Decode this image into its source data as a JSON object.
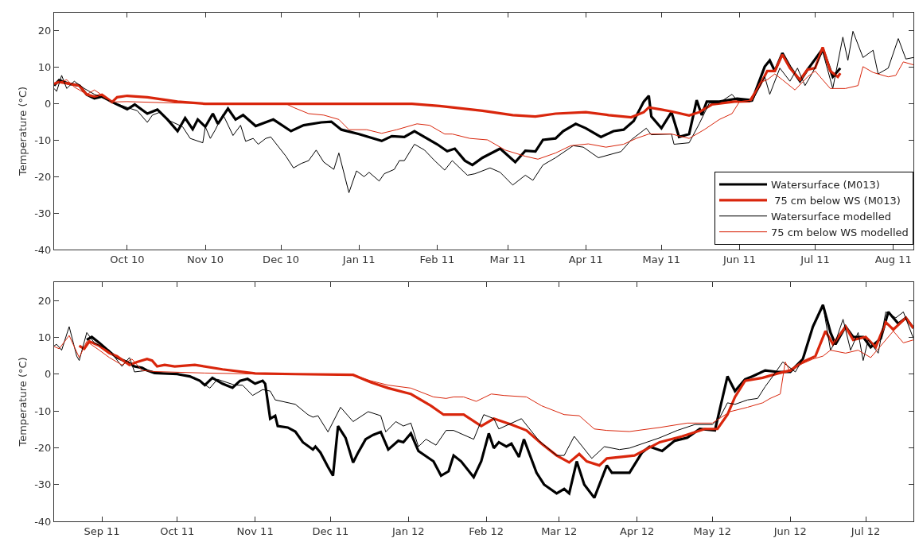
{
  "chart_data": [
    {
      "type": "line",
      "ylabel": "Temperature (°C)",
      "xlim": [
        "2010-09-02",
        "2011-08-09"
      ],
      "xticks": [
        {
          "value": "2010-10-01",
          "label": "Oct 10"
        },
        {
          "value": "2010-11-01",
          "label": "Nov 10"
        },
        {
          "value": "2010-12-01",
          "label": "Dec 10"
        },
        {
          "value": "2011-01-01",
          "label": "Jan 11"
        },
        {
          "value": "2011-02-01",
          "label": "Feb 11"
        },
        {
          "value": "2011-03-01",
          "label": "Mar 11"
        },
        {
          "value": "2011-04-01",
          "label": "Apr 11"
        },
        {
          "value": "2011-05-01",
          "label": "May 11"
        },
        {
          "value": "2011-06-01",
          "label": "Jun 11"
        },
        {
          "value": "2011-07-01",
          "label": "Jul 11"
        },
        {
          "value": "2011-08-01",
          "label": "Aug 11"
        }
      ],
      "ylim": [
        -40,
        25
      ],
      "yticks": [
        -40,
        -30,
        -20,
        -10,
        0,
        10,
        20
      ],
      "legend": "bottom right",
      "series": [
        {
          "name": "Watersurface (M013)",
          "color": "#000000",
          "x": [
            "2010-09-02",
            "2010-09-04",
            "2010-09-08",
            "2010-09-12",
            "2010-09-15",
            "2010-09-18",
            "2010-09-21",
            "2010-09-25",
            "2010-10-01",
            "2010-10-04",
            "2010-10-09",
            "2010-10-13",
            "2010-10-17",
            "2010-10-21",
            "2010-10-24",
            "2010-10-27",
            "2010-10-29",
            "2010-11-01",
            "2010-11-04",
            "2010-11-06",
            "2010-11-10",
            "2010-11-13",
            "2010-11-16",
            "2010-11-21",
            "2010-11-28",
            "2010-12-05",
            "2010-12-10",
            "2010-12-17",
            "2010-12-21",
            "2010-12-25",
            "2011-01-01",
            "2011-01-10",
            "2011-01-14",
            "2011-01-19",
            "2011-01-23",
            "2011-02-01",
            "2011-02-05",
            "2011-02-08",
            "2011-02-12",
            "2011-02-15",
            "2011-02-19",
            "2011-02-26",
            "2011-03-04",
            "2011-03-08",
            "2011-03-12",
            "2011-03-15",
            "2011-03-20",
            "2011-03-23",
            "2011-03-28",
            "2011-04-01",
            "2011-04-07",
            "2011-04-12",
            "2011-04-16",
            "2011-04-20",
            "2011-04-24",
            "2011-04-26",
            "2011-04-27",
            "2011-05-01",
            "2011-05-05",
            "2011-05-08",
            "2011-05-12",
            "2011-05-15",
            "2011-05-17",
            "2011-05-19",
            "2011-05-24",
            "2011-05-31",
            "2011-06-06",
            "2011-06-11",
            "2011-06-13",
            "2011-06-15",
            "2011-06-18",
            "2011-06-21",
            "2011-06-25",
            "2011-06-28",
            "2011-07-04",
            "2011-07-08",
            "2011-07-11"
          ],
          "values": [
            5,
            6.5,
            5.5,
            5,
            2.5,
            1.5,
            2,
            0.5,
            -1.5,
            -0.2,
            -2.7,
            -1.6,
            -4.3,
            -7.5,
            -3.9,
            -7,
            -4.3,
            -6.3,
            -2.7,
            -5.5,
            -1.3,
            -4.3,
            -3.1,
            -6.1,
            -4.3,
            -7.5,
            -5.9,
            -5.1,
            -4.9,
            -7.1,
            -8.3,
            -10.2,
            -8.9,
            -9.1,
            -7.5,
            -11.1,
            -13,
            -12.3,
            -15.6,
            -16.8,
            -14.8,
            -12.3,
            -16,
            -12.9,
            -13.1,
            -9.9,
            -9.5,
            -7.5,
            -5.5,
            -6.7,
            -9.1,
            -7.5,
            -7.1,
            -4.7,
            0.6,
            2.2,
            -3.5,
            -6.7,
            -2.3,
            -9.1,
            -8.3,
            1,
            -3.1,
            0.6,
            0.6,
            1.4,
            1,
            10.2,
            11.9,
            9,
            13.9,
            10.2,
            6.2,
            9.4,
            15.1,
            7.4,
            9.8
          ]
        },
        {
          "name": " 75 cm below WS (M013)",
          "color": "#d9260c",
          "x": [
            "2010-09-02",
            "2010-09-04",
            "2010-09-08",
            "2010-09-12",
            "2010-09-15",
            "2010-09-18",
            "2010-09-21",
            "2010-09-25",
            "2010-09-27",
            "2010-10-01",
            "2010-10-09",
            "2010-10-21",
            "2010-11-01",
            "2011-01-22",
            "2011-02-02",
            "2011-02-07",
            "2011-02-19",
            "2011-03-03",
            "2011-03-12",
            "2011-03-20",
            "2011-04-01",
            "2011-04-10",
            "2011-04-19",
            "2011-04-24",
            "2011-04-26",
            "2011-05-01",
            "2011-05-05",
            "2011-05-12",
            "2011-05-16",
            "2011-05-21",
            "2011-05-30",
            "2011-06-05",
            "2011-06-09",
            "2011-06-12",
            "2011-06-15",
            "2011-06-18",
            "2011-06-21",
            "2011-06-25",
            "2011-06-28",
            "2011-07-01",
            "2011-07-04",
            "2011-07-07",
            "2011-07-10",
            "2011-07-11"
          ],
          "values": [
            5.5,
            6,
            5.5,
            5,
            2.5,
            2,
            2.5,
            0.5,
            1.8,
            2.2,
            1.8,
            0.6,
            0,
            0,
            -0.6,
            -1,
            -1.9,
            -3.1,
            -3.5,
            -2.7,
            -2.3,
            -3.1,
            -3.7,
            -2.3,
            -1,
            -1.6,
            -2.1,
            -3.2,
            -2.3,
            -0.2,
            0.6,
            0.7,
            5,
            9,
            9,
            13.5,
            9.8,
            6.6,
            9.4,
            9.8,
            15.5,
            9,
            7.4,
            8.4
          ]
        },
        {
          "name": "Watersurface modelled",
          "color": "#000000",
          "x": [
            "2010-09-02",
            "2010-09-03",
            "2010-09-05",
            "2010-09-07",
            "2010-09-10",
            "2010-09-14",
            "2010-09-18",
            "2010-09-25",
            "2010-10-01",
            "2010-10-05",
            "2010-10-09",
            "2010-10-11",
            "2010-10-14",
            "2010-10-18",
            "2010-10-23",
            "2010-10-26",
            "2010-10-31",
            "2010-11-01",
            "2010-11-03",
            "2010-11-05",
            "2010-11-08",
            "2010-11-12",
            "2010-11-15",
            "2010-11-17",
            "2010-11-20",
            "2010-11-22",
            "2010-11-25",
            "2010-11-27",
            "2010-12-03",
            "2010-12-06",
            "2010-12-09",
            "2010-12-12",
            "2010-12-15",
            "2010-12-18",
            "2010-12-22",
            "2010-12-24",
            "2010-12-28",
            "2010-12-31",
            "2011-01-03",
            "2011-01-05",
            "2011-01-09",
            "2011-01-11",
            "2011-01-15",
            "2011-01-17",
            "2011-01-19",
            "2011-01-23",
            "2011-01-27",
            "2011-01-31",
            "2011-02-04",
            "2011-02-07",
            "2011-02-13",
            "2011-02-16",
            "2011-02-22",
            "2011-02-26",
            "2011-03-03",
            "2011-03-08",
            "2011-03-11",
            "2011-03-15",
            "2011-03-20",
            "2011-03-27",
            "2011-03-31",
            "2011-04-06",
            "2011-04-15",
            "2011-04-19",
            "2011-04-25",
            "2011-04-27",
            "2011-05-05",
            "2011-05-06",
            "2011-05-12",
            "2011-05-16",
            "2011-05-20",
            "2011-05-24",
            "2011-05-29",
            "2011-05-31",
            "2011-06-06",
            "2011-06-11",
            "2011-06-13",
            "2011-06-17",
            "2011-06-21",
            "2011-06-24",
            "2011-06-27",
            "2011-06-30",
            "2011-07-04",
            "2011-07-08",
            "2011-07-12",
            "2011-07-14",
            "2011-07-16",
            "2011-07-20",
            "2011-07-24",
            "2011-07-26",
            "2011-07-30",
            "2011-08-03",
            "2011-08-06",
            "2011-08-09"
          ],
          "values": [
            4.2,
            3.4,
            7.8,
            4.2,
            6.2,
            4.2,
            2.6,
            0.5,
            -1,
            -1.9,
            -5.1,
            -3.1,
            -2.3,
            -4.7,
            -6.3,
            -9.5,
            -10.7,
            -6.3,
            -9.5,
            -7.1,
            -2.9,
            -8.7,
            -5.9,
            -10.3,
            -9.5,
            -11.1,
            -9.5,
            -9.1,
            -14.4,
            -17.6,
            -16.4,
            -15.6,
            -12.7,
            -16,
            -18,
            -13.5,
            -24.4,
            -18.4,
            -20,
            -18.8,
            -21.2,
            -19.2,
            -18,
            -15.6,
            -15.6,
            -11.1,
            -12.7,
            -15.6,
            -18.2,
            -15.6,
            -19.6,
            -19.2,
            -17.6,
            -18.8,
            -22.3,
            -19.6,
            -21,
            -16.8,
            -14.8,
            -11.5,
            -11.9,
            -14.8,
            -13.1,
            -9.9,
            -6.7,
            -8.5,
            -8.3,
            -11.1,
            -10.7,
            -5.5,
            0.2,
            0.3,
            2.6,
            1,
            0.6,
            7.4,
            2.6,
            9.8,
            6.2,
            9.8,
            5,
            8.6,
            14.3,
            4.2,
            18.3,
            11.9,
            19.9,
            12.7,
            14.7,
            8.2,
            9.8,
            17.9,
            12.3,
            12.7
          ]
        },
        {
          "name": "75 cm below WS modelled",
          "color": "#d9260c",
          "x": [
            "2010-09-02",
            "2010-09-07",
            "2010-09-10",
            "2010-09-15",
            "2010-09-18",
            "2010-09-25",
            "2010-10-01",
            "2010-10-21",
            "2010-11-13",
            "2010-12-03",
            "2010-12-06",
            "2010-12-12",
            "2010-12-18",
            "2010-12-24",
            "2010-12-28",
            "2011-01-04",
            "2011-01-10",
            "2011-01-16",
            "2011-01-24",
            "2011-01-29",
            "2011-02-04",
            "2011-02-07",
            "2011-02-14",
            "2011-02-21",
            "2011-02-28",
            "2011-03-08",
            "2011-03-13",
            "2011-03-20",
            "2011-03-26",
            "2011-04-02",
            "2011-04-09",
            "2011-04-16",
            "2011-04-21",
            "2011-04-26",
            "2011-05-05",
            "2011-05-12",
            "2011-05-18",
            "2011-05-24",
            "2011-05-29",
            "2011-06-01",
            "2011-06-06",
            "2011-06-09",
            "2011-06-12",
            "2011-06-15",
            "2011-06-18",
            "2011-06-23",
            "2011-06-28",
            "2011-07-01",
            "2011-07-07",
            "2011-07-13",
            "2011-07-18",
            "2011-07-20",
            "2011-07-24",
            "2011-07-30",
            "2011-08-02",
            "2011-08-05",
            "2011-08-09"
          ],
          "values": [
            5.4,
            6.6,
            4.6,
            2.6,
            3.8,
            0.5,
            0.6,
            0.2,
            0,
            0,
            -1,
            -2.7,
            -3.1,
            -4.3,
            -7.1,
            -7.1,
            -8.1,
            -7.1,
            -5.5,
            -5.9,
            -8.3,
            -8.3,
            -9.5,
            -9.9,
            -12.7,
            -14.4,
            -15.2,
            -13.5,
            -11.5,
            -11,
            -11.9,
            -11.1,
            -9.5,
            -8.3,
            -8.3,
            -9.5,
            -7.1,
            -4.3,
            -2.7,
            0.6,
            1,
            5.8,
            6.6,
            8.2,
            6.6,
            3.8,
            7.4,
            9,
            4.2,
            4.2,
            5,
            10.2,
            8.6,
            7.4,
            7.8,
            11.5,
            10.7
          ]
        }
      ]
    },
    {
      "type": "line",
      "ylabel": "Temperature (°C)",
      "xlim": [
        "2011-08-13",
        "2012-07-20"
      ],
      "xticks": [
        {
          "value": "2011-09-01",
          "label": "Sep 11"
        },
        {
          "value": "2011-10-01",
          "label": "Oct 11"
        },
        {
          "value": "2011-11-01",
          "label": "Nov 11"
        },
        {
          "value": "2011-12-01",
          "label": "Dec 11"
        },
        {
          "value": "2012-01-01",
          "label": "Jan 12"
        },
        {
          "value": "2012-02-01",
          "label": "Feb 12"
        },
        {
          "value": "2012-03-01",
          "label": "Mar 12"
        },
        {
          "value": "2012-04-01",
          "label": "Apr 12"
        },
        {
          "value": "2012-05-01",
          "label": "May 12"
        },
        {
          "value": "2012-06-01",
          "label": "Jun 12"
        },
        {
          "value": "2012-07-01",
          "label": "Jul 12"
        }
      ],
      "ylim": [
        -40,
        25
      ],
      "yticks": [
        -40,
        -30,
        -20,
        -10,
        0,
        10,
        20
      ],
      "series": [
        {
          "color": "#000000",
          "x": [
            "2011-08-26",
            "2011-08-28",
            "2011-08-31",
            "2011-09-04",
            "2011-09-07",
            "2011-09-11",
            "2011-09-14",
            "2011-09-17",
            "2011-09-19",
            "2011-09-22",
            "2011-10-01",
            "2011-10-06",
            "2011-10-10",
            "2011-10-12",
            "2011-10-15",
            "2011-10-19",
            "2011-10-23",
            "2011-10-26",
            "2011-10-29",
            "2011-11-01",
            "2011-11-04",
            "2011-11-05",
            "2011-11-07",
            "2011-11-09",
            "2011-11-10",
            "2011-11-14",
            "2011-11-17",
            "2011-11-20",
            "2011-11-24",
            "2011-11-25",
            "2011-11-27",
            "2011-11-30",
            "2011-12-02",
            "2011-12-04",
            "2011-12-07",
            "2011-12-10",
            "2011-12-12",
            "2011-12-15",
            "2011-12-18",
            "2011-12-21",
            "2011-12-24",
            "2011-12-28",
            "2011-12-30",
            "2012-01-02",
            "2012-01-05",
            "2012-01-11",
            "2012-01-14",
            "2012-01-17",
            "2012-01-19",
            "2012-01-22",
            "2012-01-27",
            "2012-01-30",
            "2012-02-02",
            "2012-02-04",
            "2012-02-06",
            "2012-02-09",
            "2012-02-11",
            "2012-02-14",
            "2012-02-16",
            "2012-02-21",
            "2012-02-24",
            "2012-02-29",
            "2012-03-03",
            "2012-03-05",
            "2012-03-08",
            "2012-03-11",
            "2012-03-15",
            "2012-03-20",
            "2012-03-22",
            "2012-03-29",
            "2012-04-03",
            "2012-04-06",
            "2012-04-11",
            "2012-04-16",
            "2012-04-21",
            "2012-04-26",
            "2012-05-02",
            "2012-05-04",
            "2012-05-07",
            "2012-05-10",
            "2012-05-14",
            "2012-05-17",
            "2012-05-22",
            "2012-05-27",
            "2012-06-01",
            "2012-06-06",
            "2012-06-10",
            "2012-06-14",
            "2012-06-17",
            "2012-06-19",
            "2012-06-23",
            "2012-06-26",
            "2012-06-30",
            "2012-07-03",
            "2012-07-07",
            "2012-07-10",
            "2012-07-14",
            "2012-07-17",
            "2012-07-20"
          ],
          "values": [
            9.3,
            10.1,
            8.5,
            6.1,
            4.5,
            3.3,
            2.1,
            1.7,
            1,
            0.3,
            0,
            -0.6,
            -1.8,
            -3,
            -1,
            -2.6,
            -3.7,
            -1.8,
            -1.3,
            -2.6,
            -1.8,
            -2.6,
            -12.1,
            -11.3,
            -14.1,
            -14.5,
            -15.6,
            -18.5,
            -20.5,
            -19.7,
            -21.3,
            -25.2,
            -27.6,
            -14.1,
            -17.3,
            -24,
            -21.3,
            -17.7,
            -16.5,
            -15.7,
            -20.5,
            -18.1,
            -18.5,
            -16.1,
            -20.9,
            -23.7,
            -27.6,
            -26.4,
            -22.1,
            -23.7,
            -28,
            -23.7,
            -16.1,
            -20.1,
            -18.5,
            -19.7,
            -18.9,
            -22.5,
            -17.7,
            -26.8,
            -30,
            -32.4,
            -31.2,
            -32.4,
            -23.7,
            -30,
            -33.6,
            -24.8,
            -26.8,
            -26.8,
            -21.3,
            -19.7,
            -20.9,
            -18.1,
            -17.3,
            -14.9,
            -15.3,
            -9.4,
            -0.6,
            -4.6,
            -1.4,
            -0.6,
            1,
            0.6,
            0.6,
            4.1,
            12.9,
            18.8,
            11.3,
            8.1,
            12.9,
            10.1,
            10.1,
            7.3,
            9.7,
            16.9,
            13.7,
            15.3,
            12.5
          ]
        },
        {
          "color": "#d9260c",
          "x": [
            "2011-08-23",
            "2011-08-25",
            "2011-08-27",
            "2011-08-31",
            "2011-09-04",
            "2011-09-07",
            "2011-09-12",
            "2011-09-15",
            "2011-09-19",
            "2011-09-21",
            "2011-09-23",
            "2011-09-26",
            "2011-09-30",
            "2011-10-08",
            "2011-10-19",
            "2011-11-01",
            "2011-11-17",
            "2011-12-10",
            "2011-12-17",
            "2011-12-24",
            "2012-01-02",
            "2012-01-10",
            "2012-01-15",
            "2012-01-19",
            "2012-01-23",
            "2012-01-30",
            "2012-02-04",
            "2012-02-11",
            "2012-02-17",
            "2012-02-23",
            "2012-02-29",
            "2012-03-05",
            "2012-03-09",
            "2012-03-12",
            "2012-03-17",
            "2012-03-20",
            "2012-03-31",
            "2012-04-10",
            "2012-04-19",
            "2012-04-28",
            "2012-05-03",
            "2012-05-07",
            "2012-05-10",
            "2012-05-14",
            "2012-05-21",
            "2012-05-27",
            "2012-06-01",
            "2012-06-06",
            "2012-06-11",
            "2012-06-15",
            "2012-06-18",
            "2012-06-23",
            "2012-06-26",
            "2012-07-01",
            "2012-07-05",
            "2012-07-09",
            "2012-07-12",
            "2012-07-17",
            "2012-07-20"
          ],
          "values": [
            7.7,
            6.9,
            8.9,
            7.7,
            5.7,
            4.9,
            2.5,
            3.3,
            4.1,
            3.7,
            2.1,
            2.5,
            2.1,
            2.5,
            1.3,
            0.2,
            0,
            -0.2,
            -2.2,
            -3.8,
            -5.4,
            -8.6,
            -11,
            -11,
            -11,
            -14.1,
            -12.1,
            -13.7,
            -15.3,
            -18.9,
            -22.1,
            -24,
            -21.7,
            -23.7,
            -24.8,
            -22.9,
            -22.1,
            -18.5,
            -16.9,
            -14.9,
            -14.9,
            -11,
            -6.2,
            -1.8,
            -1,
            0.2,
            1,
            3.3,
            4.9,
            11.7,
            8.1,
            12.9,
            9.3,
            10.1,
            7.3,
            14.1,
            12.1,
            15.3,
            12.5
          ]
        },
        {
          "color": "#000000",
          "x": [
            "2011-08-13",
            "2011-08-14",
            "2011-08-16",
            "2011-08-19",
            "2011-08-22",
            "2011-08-23",
            "2011-08-26",
            "2011-08-29",
            "2011-09-04",
            "2011-09-09",
            "2011-09-12",
            "2011-09-14",
            "2011-09-19",
            "2011-09-26",
            "2011-10-01",
            "2011-10-08",
            "2011-10-14",
            "2011-10-17",
            "2011-10-24",
            "2011-10-27",
            "2011-10-31",
            "2011-11-04",
            "2011-11-07",
            "2011-11-09",
            "2011-11-17",
            "2011-11-22",
            "2011-11-24",
            "2011-11-26",
            "2011-11-30",
            "2011-12-05",
            "2011-12-10",
            "2011-12-16",
            "2011-12-21",
            "2011-12-23",
            "2011-12-27",
            "2011-12-30",
            "2012-01-02",
            "2012-01-05",
            "2012-01-08",
            "2012-01-12",
            "2012-01-16",
            "2012-01-19",
            "2012-01-27",
            "2012-01-31",
            "2012-02-04",
            "2012-02-06",
            "2012-02-15",
            "2012-02-22",
            "2012-02-29",
            "2012-03-03",
            "2012-03-07",
            "2012-03-14",
            "2012-03-19",
            "2012-03-25",
            "2012-03-29",
            "2012-04-10",
            "2012-04-17",
            "2012-04-24",
            "2012-05-01",
            "2012-05-04",
            "2012-05-07",
            "2012-05-10",
            "2012-05-15",
            "2012-05-19",
            "2012-05-22",
            "2012-05-25",
            "2012-05-29",
            "2012-06-03",
            "2012-06-06",
            "2012-06-10",
            "2012-06-14",
            "2012-06-17",
            "2012-06-19",
            "2012-06-22",
            "2012-06-25",
            "2012-06-28",
            "2012-06-30",
            "2012-07-02",
            "2012-07-06",
            "2012-07-09",
            "2012-07-13",
            "2012-07-16",
            "2012-07-20"
          ],
          "values": [
            7.7,
            8.1,
            6.5,
            12.9,
            4.9,
            3.7,
            11.3,
            8.5,
            6.5,
            2.1,
            4.5,
            0.6,
            1,
            0.2,
            0.2,
            -1,
            -3.8,
            -1.4,
            -3,
            -3,
            -5.8,
            -4.2,
            -4.6,
            -7,
            -8.2,
            -11,
            -11.7,
            -11.3,
            -15.7,
            -9,
            -12.9,
            -10.2,
            -11.3,
            -15.7,
            -12.9,
            -14.1,
            -13.3,
            -19.7,
            -17.7,
            -19.3,
            -15.3,
            -15.3,
            -17.7,
            -11,
            -12.1,
            -14.9,
            -12.1,
            -18.1,
            -22.1,
            -22.1,
            -16.9,
            -22.9,
            -19.7,
            -20.5,
            -20.1,
            -17.3,
            -15.3,
            -13.7,
            -13.7,
            -11.7,
            -7.8,
            -8.2,
            -7,
            -6.6,
            -3.4,
            -0.6,
            3.3,
            0.6,
            4.1,
            13.3,
            18.8,
            6.5,
            8.9,
            14.9,
            6.5,
            11.3,
            3.7,
            9.3,
            5.7,
            16.9,
            15.3,
            16.9,
            9.7
          ]
        },
        {
          "color": "#d9260c",
          "x": [
            "2011-08-13",
            "2011-08-15",
            "2011-08-19",
            "2011-08-23",
            "2011-08-26",
            "2011-08-31",
            "2011-09-04",
            "2011-09-09",
            "2011-09-13",
            "2011-09-17",
            "2011-09-22",
            "2011-10-12",
            "2011-11-05",
            "2011-12-04",
            "2011-12-10",
            "2011-12-17",
            "2011-12-24",
            "2012-01-02",
            "2012-01-11",
            "2012-01-16",
            "2012-01-19",
            "2012-01-23",
            "2012-01-28",
            "2012-02-03",
            "2012-02-08",
            "2012-02-17",
            "2012-02-23",
            "2012-03-03",
            "2012-03-09",
            "2012-03-15",
            "2012-03-20",
            "2012-03-29",
            "2012-04-10",
            "2012-04-21",
            "2012-05-01",
            "2012-05-08",
            "2012-05-15",
            "2012-05-21",
            "2012-05-24",
            "2012-05-28",
            "2012-05-30",
            "2012-06-01",
            "2012-06-03",
            "2012-06-06",
            "2012-06-10",
            "2012-06-14",
            "2012-06-17",
            "2012-06-23",
            "2012-06-28",
            "2012-07-03",
            "2012-07-08",
            "2012-07-12",
            "2012-07-16",
            "2012-07-20"
          ],
          "values": [
            7.5,
            6.9,
            10.5,
            4.5,
            8.9,
            6.5,
            4.5,
            2.5,
            4.1,
            1,
            0.7,
            0.3,
            0,
            0,
            -0.2,
            -1.8,
            -3,
            -3.8,
            -6.2,
            -6.6,
            -6.2,
            -6.2,
            -7.4,
            -5.4,
            -5.8,
            -6.2,
            -8.6,
            -11,
            -11.3,
            -14.9,
            -15.3,
            -15.6,
            -14.5,
            -13.3,
            -13.3,
            -10.2,
            -9,
            -7.8,
            -6.6,
            -5.4,
            3.3,
            0.6,
            2.1,
            2.9,
            4.1,
            4.9,
            6.5,
            5.7,
            6.5,
            4.5,
            8.5,
            11.7,
            8.5,
            9.3
          ]
        }
      ]
    }
  ]
}
